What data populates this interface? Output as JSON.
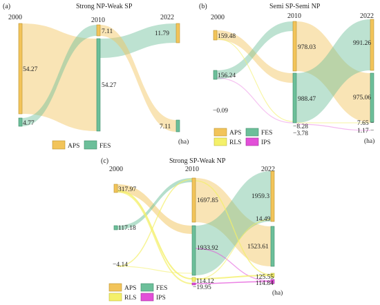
{
  "colors": {
    "APS": "#f2c45a",
    "FES": "#6cbf9a",
    "RLS": "#f4f06a",
    "IPS": "#e24fd8"
  },
  "chart_data": [
    {
      "type": "sankey",
      "panel_label": "(a)",
      "title": "Strong NP-Weak SP",
      "unit": "(ha)",
      "years": [
        "2000",
        "2010",
        "2022"
      ],
      "legend": [
        "APS",
        "FES"
      ],
      "columns": [
        {
          "year": "2000",
          "nodes": [
            {
              "class": "APS",
              "value": 54.27,
              "label": "54.27"
            },
            {
              "class": "FES",
              "value": 4.77,
              "label": "4.77"
            }
          ]
        },
        {
          "year": "2010",
          "nodes": [
            {
              "class": "APS",
              "value": 7.11,
              "label": "7.11"
            },
            {
              "class": "FES",
              "value": 54.27,
              "label": "54.27"
            }
          ]
        },
        {
          "year": "2022",
          "nodes": [
            {
              "class": "APS",
              "value": 11.79,
              "label": "11.79"
            },
            {
              "class": "FES",
              "value": 7.11,
              "label": "7.11"
            }
          ]
        }
      ],
      "flows": [
        {
          "from": "2000-APS",
          "to": "2010-FES",
          "value": 54.27
        },
        {
          "from": "2000-FES",
          "to": "2010-APS",
          "value": 4.77
        },
        {
          "from": "2010-APS",
          "to": "2022-FES",
          "value": 7.11
        },
        {
          "from": "2010-FES",
          "to": "2022-APS",
          "value": 11.79
        }
      ]
    },
    {
      "type": "sankey",
      "panel_label": "(b)",
      "title": "Semi SP-Semi NP",
      "unit": "(ha)",
      "years": [
        "2000",
        "2010",
        "2022"
      ],
      "legend": [
        "APS",
        "FES",
        "RLS",
        "IPS"
      ],
      "columns": [
        {
          "year": "2000",
          "nodes": [
            {
              "class": "APS",
              "value": 159.48,
              "label": "159.48"
            },
            {
              "class": "FES",
              "value": 156.24,
              "label": "156.24"
            },
            {
              "class": "RLS",
              "value": 0.09,
              "label": "0.09"
            }
          ]
        },
        {
          "year": "2010",
          "nodes": [
            {
              "class": "APS",
              "value": 978.03,
              "label": "978.03"
            },
            {
              "class": "FES",
              "value": 988.47,
              "label": "988.47"
            },
            {
              "class": "RLS",
              "value": 8.28,
              "label": "8.28"
            },
            {
              "class": "IPS",
              "value": 3.78,
              "label": "3.78"
            }
          ]
        },
        {
          "year": "2022",
          "nodes": [
            {
              "class": "APS",
              "value": 991.26,
              "label": "991.26"
            },
            {
              "class": "FES",
              "value": 975.06,
              "label": "975.06"
            },
            {
              "class": "RLS",
              "value": 7.65,
              "label": "7.65"
            },
            {
              "class": "IPS",
              "value": 1.17,
              "label": "1.17"
            }
          ]
        }
      ]
    },
    {
      "type": "sankey",
      "panel_label": "(c)",
      "title": "Strong SP-Weak NP",
      "unit": "(ha)",
      "years": [
        "2000",
        "2010",
        "2022"
      ],
      "legend": [
        "APS",
        "FES",
        "RLS",
        "IPS"
      ],
      "columns": [
        {
          "year": "2000",
          "nodes": [
            {
              "class": "APS",
              "value": 317.97,
              "label": "317.97"
            },
            {
              "class": "FES",
              "value": 117.18,
              "label": "117.18"
            },
            {
              "class": "RLS",
              "value": 4.14,
              "label": "4.14"
            }
          ]
        },
        {
          "year": "2010",
          "nodes": [
            {
              "class": "APS",
              "value": 1697.85,
              "label": "1697.85"
            },
            {
              "class": "FES",
              "value": 1933.92,
              "label": "1933.92"
            },
            {
              "class": "RLS",
              "value": 114.12,
              "label": "114.12"
            },
            {
              "class": "IPS",
              "value": 19.95,
              "label": "19.95"
            }
          ]
        },
        {
          "year": "2022",
          "nodes": [
            {
              "class": "APS",
              "value": 1959.3,
              "label": "1959.3"
            },
            {
              "class": "RLS",
              "value": 14.49,
              "label": "14.49"
            },
            {
              "class": "FES",
              "value": 1523.61,
              "label": "1523.61"
            },
            {
              "class": "RLS",
              "value": 125.55,
              "label": "125.55"
            },
            {
              "class": "IPS",
              "value": 114.84,
              "label": "114.84"
            }
          ]
        }
      ]
    }
  ]
}
